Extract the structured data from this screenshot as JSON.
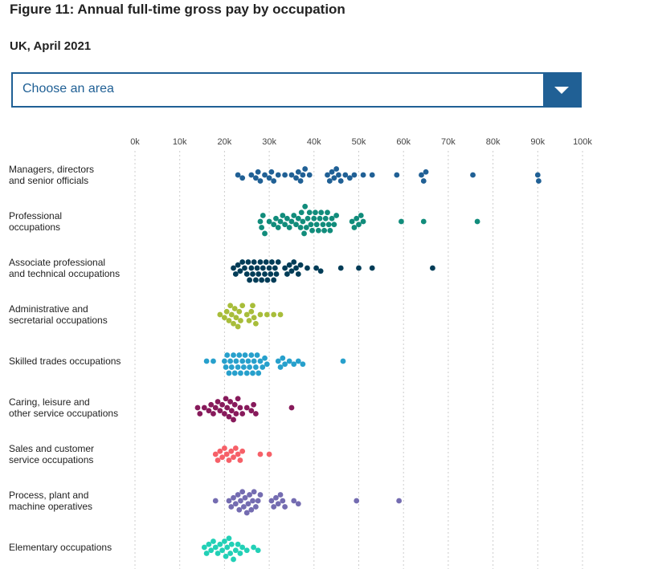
{
  "page": {
    "title": "Figure 11: Annual full-time gross pay by occupation",
    "subtitle": "UK, April 2021",
    "dropdown_placeholder": "Choose an area",
    "accent": "#206095"
  },
  "chart_data": {
    "type": "scatter",
    "subtype": "beeswarm",
    "title": "Figure 11: Annual full-time gross pay by occupation",
    "subtitle": "UK, April 2021",
    "xlabel": "",
    "ylabel": "",
    "xlim": [
      0,
      100000
    ],
    "xticks": [
      0,
      10000,
      20000,
      30000,
      40000,
      50000,
      60000,
      70000,
      80000,
      90000,
      100000
    ],
    "xtick_labels": [
      "0k",
      "10k",
      "20k",
      "30k",
      "40k",
      "50k",
      "60k",
      "70k",
      "80k",
      "90k",
      "100k"
    ],
    "grid": true,
    "categories": [
      {
        "label_lines": [
          "Managers, directors",
          "and senior officials"
        ],
        "color": "#206095",
        "values": [
          23000,
          24000,
          26000,
          27000,
          27500,
          28000,
          29000,
          30000,
          30500,
          31000,
          32000,
          33500,
          35000,
          36000,
          36500,
          37000,
          37500,
          38000,
          39000,
          43000,
          43500,
          44000,
          44500,
          45000,
          45500,
          46000,
          47000,
          48000,
          49000,
          51000,
          53000,
          58500,
          64000,
          64500,
          65000,
          75500,
          90000,
          90200
        ]
      },
      {
        "label_lines": [
          "Professional",
          "occupations"
        ],
        "color": "#118c7b",
        "values": [
          28000,
          28300,
          28600,
          29000,
          30000,
          31000,
          31500,
          32000,
          32500,
          33000,
          33500,
          34000,
          34500,
          35000,
          35500,
          36000,
          36500,
          37000,
          37200,
          37500,
          37800,
          38000,
          38300,
          38600,
          39000,
          39300,
          39600,
          40000,
          40300,
          40600,
          41000,
          41300,
          41600,
          42000,
          42300,
          42600,
          43000,
          43300,
          43600,
          44000,
          44500,
          45000,
          48500,
          49000,
          49500,
          50000,
          50500,
          51000,
          59500,
          64500,
          76500
        ]
      },
      {
        "label_lines": [
          "Associate professional",
          "and technical occupations"
        ],
        "color": "#003c57",
        "values": [
          22000,
          22500,
          23000,
          23500,
          24000,
          24500,
          25000,
          25300,
          25600,
          26000,
          26300,
          26600,
          27000,
          27300,
          27600,
          28000,
          28300,
          28600,
          29000,
          29300,
          29600,
          30000,
          30300,
          30600,
          31000,
          31300,
          31600,
          32000,
          33500,
          34000,
          34500,
          35000,
          35500,
          36000,
          36500,
          37000,
          38500,
          40500,
          41500,
          46000,
          50000,
          53000,
          66500
        ]
      },
      {
        "label_lines": [
          "Administrative and",
          "secretarial occupations"
        ],
        "color": "#a8bd3a",
        "values": [
          19000,
          20000,
          20500,
          21000,
          21300,
          21600,
          22000,
          22300,
          22600,
          23000,
          23300,
          23600,
          24000,
          25000,
          25500,
          26000,
          26300,
          26600,
          27000,
          28000,
          29500,
          31000,
          32500
        ]
      },
      {
        "label_lines": [
          "Skilled trades occupations"
        ],
        "color": "#27a0cc",
        "values": [
          16000,
          17500,
          20000,
          20300,
          20600,
          21000,
          21300,
          21600,
          22000,
          22300,
          22600,
          23000,
          23300,
          23600,
          24000,
          24300,
          24600,
          25000,
          25300,
          25600,
          26000,
          26300,
          26600,
          27000,
          27300,
          27600,
          28000,
          28500,
          29000,
          29500,
          32000,
          32500,
          33000,
          33500,
          34500,
          35500,
          36500,
          37500,
          46500
        ]
      },
      {
        "label_lines": [
          "Caring, leisure and",
          "other service occupations"
        ],
        "color": "#871a5b",
        "values": [
          14000,
          14500,
          15500,
          16500,
          17000,
          17500,
          18000,
          18500,
          19000,
          19500,
          20000,
          20300,
          20600,
          21000,
          21300,
          21600,
          22000,
          22300,
          22600,
          23000,
          23500,
          24000,
          25000,
          26000,
          26500,
          27000,
          35000
        ]
      },
      {
        "label_lines": [
          "Sales and customer",
          "service occupations"
        ],
        "color": "#f66068",
        "values": [
          18000,
          18500,
          19000,
          19500,
          20000,
          20500,
          21000,
          21500,
          22000,
          22500,
          23000,
          23500,
          24000,
          28000,
          30000
        ]
      },
      {
        "label_lines": [
          "Process, plant and",
          "machine operatives"
        ],
        "color": "#746cb1",
        "values": [
          18000,
          21000,
          21500,
          22000,
          22500,
          23000,
          23300,
          23600,
          24000,
          24300,
          24600,
          25000,
          25300,
          25600,
          26000,
          26300,
          26600,
          27000,
          27500,
          28000,
          30500,
          31000,
          31500,
          32000,
          32500,
          33000,
          33500,
          35500,
          36500,
          49500,
          59000
        ]
      },
      {
        "label_lines": [
          "Elementary occupations"
        ],
        "color": "#22d0b6",
        "values": [
          15500,
          16000,
          16500,
          17000,
          17500,
          18000,
          18500,
          19000,
          19500,
          20000,
          20300,
          20600,
          21000,
          21300,
          21600,
          22000,
          22500,
          23000,
          23500,
          24000,
          25000,
          26500,
          27500
        ]
      }
    ]
  }
}
